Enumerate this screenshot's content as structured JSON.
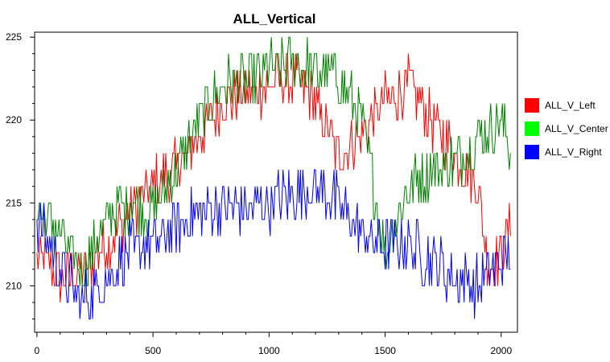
{
  "chart_data": {
    "type": "line",
    "title": "ALL_Vertical",
    "xlabel": "",
    "ylabel": "",
    "xlim": [
      -10,
      2070
    ],
    "ylim": [
      207.2,
      225.3
    ],
    "x_ticks": [
      0,
      500,
      1000,
      1500,
      2000
    ],
    "x_tick_labels": [
      "0",
      "500",
      "1000",
      "1500",
      "2000"
    ],
    "y_ticks": [
      210,
      215,
      220,
      225
    ],
    "y_tick_labels": [
      "210",
      "215",
      "220",
      "225"
    ],
    "grid": false,
    "legend_position": "right",
    "noise_note": "each series fluctuates roughly ±1.5 around its trend; trend knots below",
    "series": [
      {
        "name": "ALL_V_Left",
        "color": "#ff0000",
        "x": [
          0,
          100,
          200,
          300,
          400,
          500,
          600,
          700,
          800,
          900,
          1000,
          1100,
          1200,
          1300,
          1400,
          1500,
          1600,
          1700,
          1800,
          1900,
          1950,
          2000,
          2040
        ],
        "y": [
          212,
          210.5,
          211,
          212.5,
          214.5,
          216,
          217,
          219,
          221,
          221.5,
          222,
          222.5,
          221,
          218,
          219,
          221,
          222,
          220,
          218,
          216,
          211,
          212,
          214
        ]
      },
      {
        "name": "ALL_V_Center",
        "color": "#008000",
        "x": [
          0,
          100,
          200,
          300,
          400,
          500,
          600,
          700,
          800,
          900,
          1000,
          1100,
          1200,
          1300,
          1400,
          1450,
          1500,
          1600,
          1700,
          1800,
          1900,
          2000,
          2040
        ],
        "y": [
          215,
          213,
          211,
          214,
          215,
          214.5,
          217,
          220,
          222,
          222.5,
          223,
          223.5,
          223,
          222.5,
          220,
          216,
          212,
          216,
          217,
          217.5,
          219,
          220,
          218
        ]
      },
      {
        "name": "ALL_V_Right",
        "color": "#0000ff",
        "x": [
          0,
          100,
          200,
          300,
          400,
          500,
          600,
          700,
          800,
          900,
          1000,
          1100,
          1200,
          1300,
          1400,
          1500,
          1600,
          1700,
          1800,
          1900,
          2000,
          2040
        ],
        "y": [
          214,
          211,
          209,
          210.5,
          212,
          212.5,
          213.5,
          214.5,
          215,
          214.5,
          215,
          215.5,
          216,
          215,
          213,
          212.5,
          212.5,
          211.5,
          210.5,
          210,
          211.5,
          212
        ]
      }
    ]
  }
}
